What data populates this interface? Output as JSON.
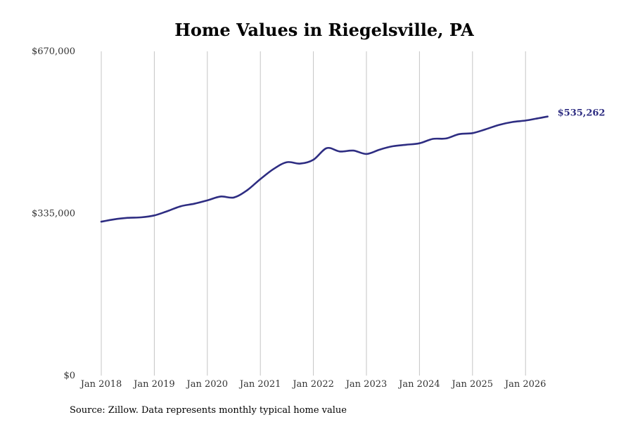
{
  "chart_data": {
    "type": "line",
    "title": "Home Values in Riegelsville, PA",
    "source": "Source: Zillow. Data represents monthly typical home value",
    "ylim": [
      0,
      670000
    ],
    "yticks": [
      0,
      335000,
      670000
    ],
    "y_tick_labels": [
      "$0",
      "$335,000",
      "$670,000"
    ],
    "xticks": [
      "Jan 2018",
      "Jan 2019",
      "Jan 2020",
      "Jan 2021",
      "Jan 2022",
      "Jan 2023",
      "Jan 2024",
      "Jan 2025",
      "Jan 2026"
    ],
    "x_tick_labels": [
      "Jan 2018",
      "Jan 2019",
      "Jan 2020",
      "Jan 2021",
      "Jan 2022",
      "Jan 2023",
      "Jan 2024",
      "Jan 2025",
      "Jan 2026"
    ],
    "grid": "vertical",
    "series_color": "#2e2d82",
    "end_label": "$535,262",
    "x": [
      "2018-01",
      "2018-04",
      "2018-07",
      "2018-10",
      "2019-01",
      "2019-04",
      "2019-07",
      "2019-10",
      "2020-01",
      "2020-04",
      "2020-07",
      "2020-10",
      "2021-01",
      "2021-04",
      "2021-07",
      "2021-10",
      "2022-01",
      "2022-04",
      "2022-07",
      "2022-10",
      "2023-01",
      "2023-04",
      "2023-07",
      "2023-10",
      "2024-01",
      "2024-04",
      "2024-07",
      "2024-10",
      "2025-01",
      "2025-04",
      "2025-07",
      "2025-10",
      "2026-01",
      "2026-04",
      "2026-06"
    ],
    "values": [
      318000,
      323000,
      326000,
      327000,
      331000,
      340000,
      350000,
      355000,
      362000,
      370000,
      368000,
      383000,
      406000,
      427000,
      441000,
      438000,
      446000,
      470000,
      463000,
      465000,
      458000,
      467000,
      474000,
      477000,
      480000,
      489000,
      490000,
      499000,
      501000,
      509000,
      518000,
      524000,
      527000,
      532000,
      535262
    ]
  }
}
